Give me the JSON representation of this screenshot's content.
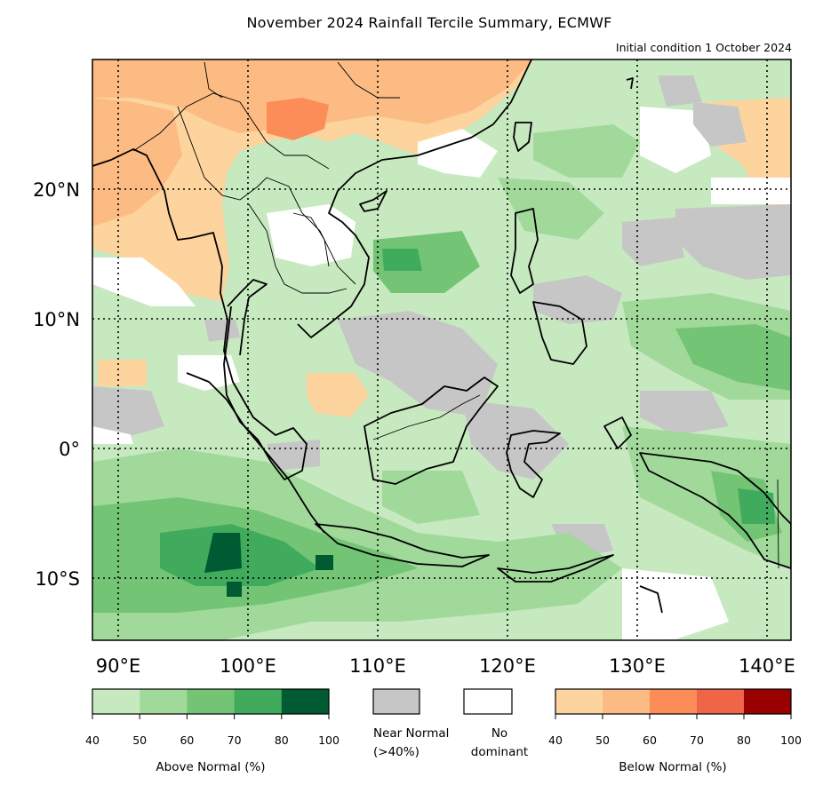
{
  "title": "November 2024 Rainfall Tercile Summary, ECMWF",
  "subtitle": "Initial condition 1 October 2024",
  "map": {
    "lon_range": [
      88,
      142
    ],
    "lat_range": [
      -15,
      30
    ],
    "lon_ticks": [
      {
        "value": 90,
        "label": "90°E"
      },
      {
        "value": 100,
        "label": "100°E"
      },
      {
        "value": 110,
        "label": "110°E"
      },
      {
        "value": 120,
        "label": "120°E"
      },
      {
        "value": 130,
        "label": "130°E"
      },
      {
        "value": 140,
        "label": "140°E"
      }
    ],
    "lat_ticks": [
      {
        "value": 20,
        "label": "20°N"
      },
      {
        "value": 10,
        "label": "10°N"
      },
      {
        "value": 0,
        "label": "0°"
      },
      {
        "value": -10,
        "label": "10°S"
      }
    ],
    "gridlines": true
  },
  "legend": {
    "above_normal": {
      "label": "Above Normal (%)",
      "ticks": [
        "40",
        "50",
        "60",
        "70",
        "80",
        "100"
      ],
      "colors": [
        "#c7e9c0",
        "#a1d99b",
        "#74c476",
        "#41ab5d",
        "#005a32"
      ]
    },
    "near_normal": {
      "label_line1": "Near Normal",
      "label_line2": "(>40%)",
      "color": "#c6c6c6"
    },
    "no_dominant": {
      "label_line1": "No",
      "label_line2": "dominant",
      "color": "#ffffff"
    },
    "below_normal": {
      "label": "Below Normal (%)",
      "ticks": [
        "40",
        "50",
        "60",
        "70",
        "80",
        "100"
      ],
      "colors": [
        "#fdd49e",
        "#fdbb84",
        "#fc8d59",
        "#ef6548",
        "#990000"
      ]
    }
  }
}
